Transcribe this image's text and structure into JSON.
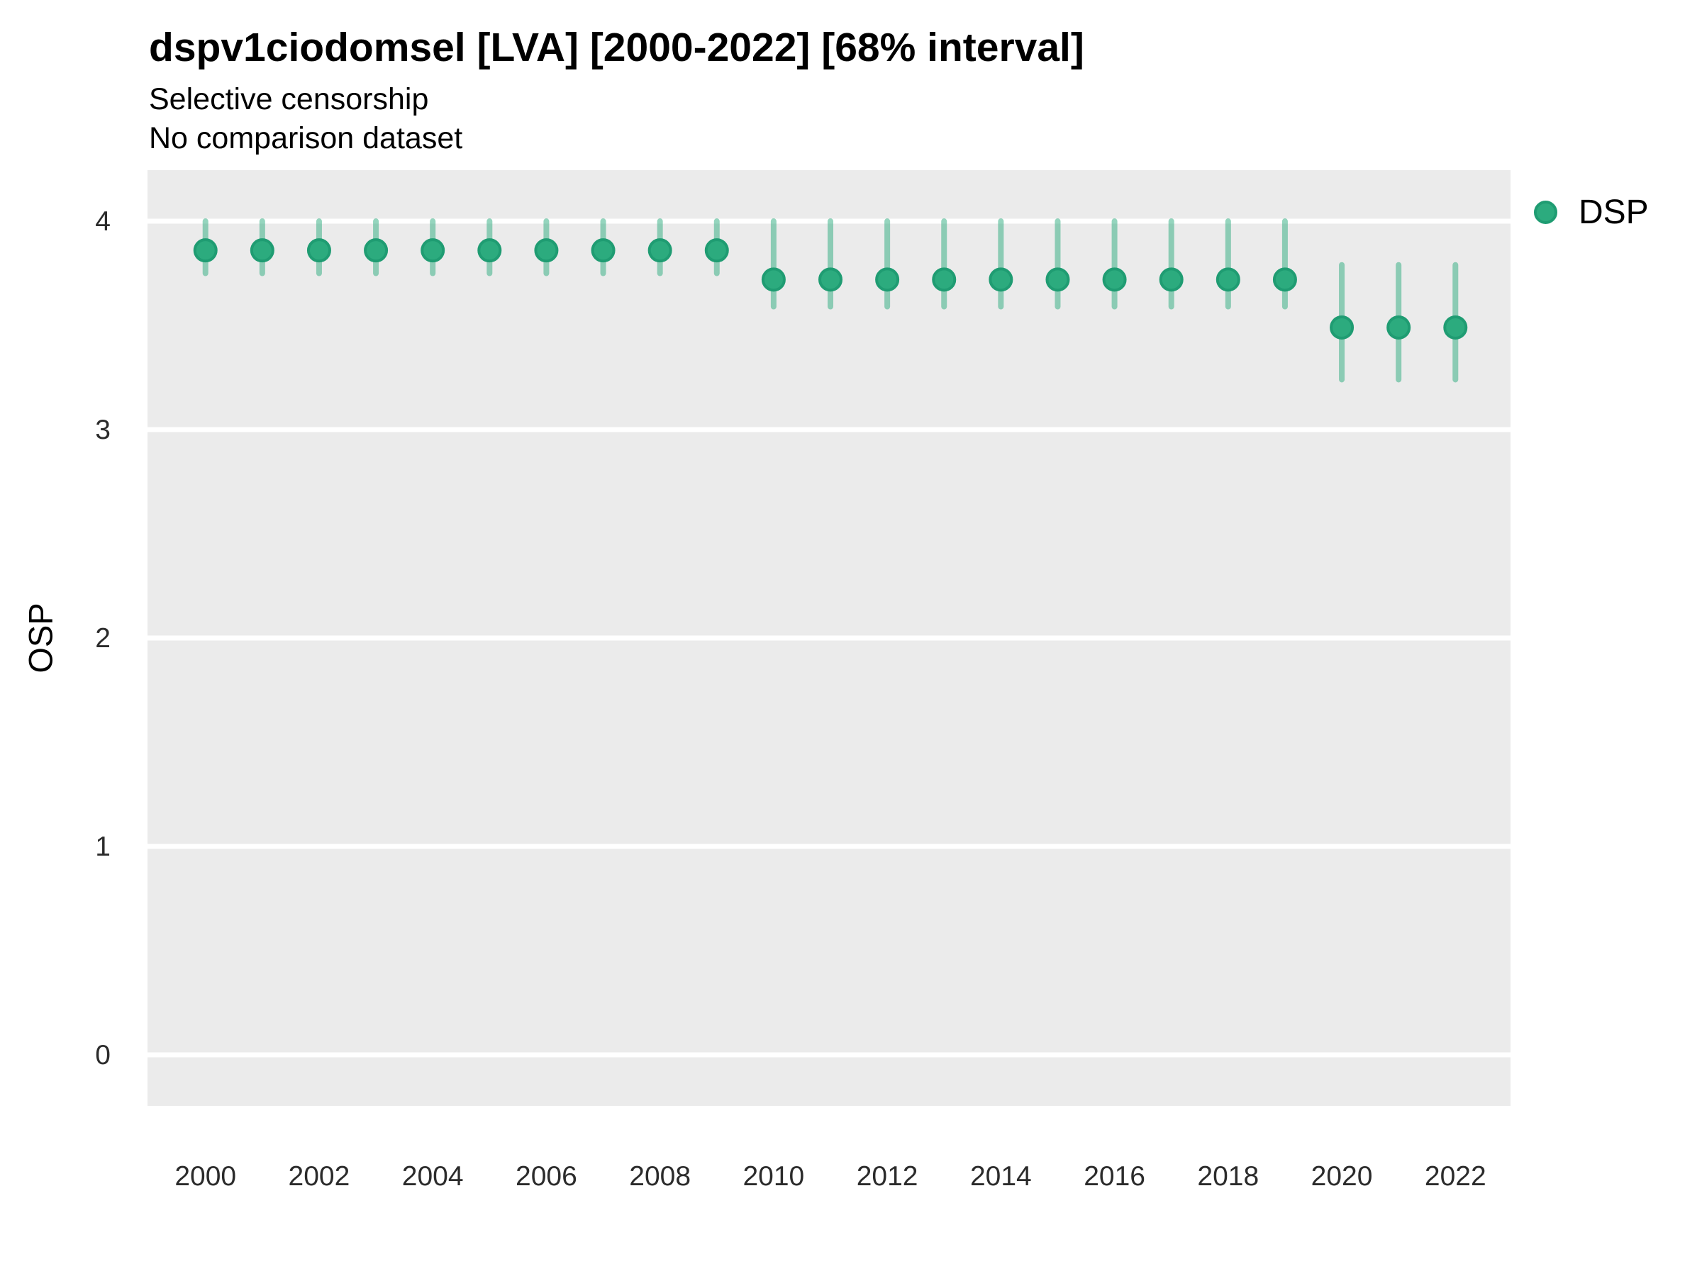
{
  "header": {
    "title": "dspv1ciodomsel [LVA] [2000-2022] [68% interval]",
    "subtitle": "Selective censorship",
    "caption": "No comparison dataset"
  },
  "axes": {
    "y_title": "OSP",
    "x_title": ""
  },
  "legend": {
    "items": [
      {
        "label": "DSP",
        "color": "#2cab7e",
        "stroke": "#1f9c72"
      }
    ]
  },
  "colors": {
    "panel_background": "#EBEBEB",
    "gridline": "#FFFFFF",
    "point_fill": "#2cab7e",
    "point_stroke": "#1f9c72",
    "interval_line": "#2cab7e",
    "tick_text": "#2b2b2b",
    "text": "#000000"
  },
  "chart_data": {
    "type": "scatter",
    "title": "dspv1ciodomsel [LVA] [2000-2022] [68% interval]",
    "subtitle": "Selective censorship",
    "caption": "No comparison dataset",
    "xlabel": "",
    "ylabel": "OSP",
    "interval_level": "68%",
    "xlim": [
      1998.98,
      2022.97
    ],
    "ylim": [
      -0.245,
      4.245
    ],
    "yticks": [
      0,
      1,
      2,
      3,
      4
    ],
    "xticks": [
      2000,
      2002,
      2004,
      2006,
      2008,
      2010,
      2012,
      2014,
      2016,
      2018,
      2020,
      2022
    ],
    "grid": "horizontal-major-only",
    "legend_position": "right",
    "series": [
      {
        "name": "DSP",
        "color": "#2cab7e",
        "stroke": "#1f9c72",
        "interval_color": "#2cab7e",
        "points": [
          {
            "year": 2000,
            "value": 3.86,
            "lo": 3.75,
            "hi": 4.0
          },
          {
            "year": 2001,
            "value": 3.86,
            "lo": 3.75,
            "hi": 4.0
          },
          {
            "year": 2002,
            "value": 3.86,
            "lo": 3.75,
            "hi": 4.0
          },
          {
            "year": 2003,
            "value": 3.86,
            "lo": 3.75,
            "hi": 4.0
          },
          {
            "year": 2004,
            "value": 3.86,
            "lo": 3.75,
            "hi": 4.0
          },
          {
            "year": 2005,
            "value": 3.86,
            "lo": 3.75,
            "hi": 4.0
          },
          {
            "year": 2006,
            "value": 3.86,
            "lo": 3.75,
            "hi": 4.0
          },
          {
            "year": 2007,
            "value": 3.86,
            "lo": 3.75,
            "hi": 4.0
          },
          {
            "year": 2008,
            "value": 3.86,
            "lo": 3.75,
            "hi": 4.0
          },
          {
            "year": 2009,
            "value": 3.86,
            "lo": 3.75,
            "hi": 4.0
          },
          {
            "year": 2010,
            "value": 3.72,
            "lo": 3.59,
            "hi": 4.0
          },
          {
            "year": 2011,
            "value": 3.72,
            "lo": 3.59,
            "hi": 4.0
          },
          {
            "year": 2012,
            "value": 3.72,
            "lo": 3.59,
            "hi": 4.0
          },
          {
            "year": 2013,
            "value": 3.72,
            "lo": 3.59,
            "hi": 4.0
          },
          {
            "year": 2014,
            "value": 3.72,
            "lo": 3.59,
            "hi": 4.0
          },
          {
            "year": 2015,
            "value": 3.72,
            "lo": 3.59,
            "hi": 4.0
          },
          {
            "year": 2016,
            "value": 3.72,
            "lo": 3.59,
            "hi": 4.0
          },
          {
            "year": 2017,
            "value": 3.72,
            "lo": 3.59,
            "hi": 4.0
          },
          {
            "year": 2018,
            "value": 3.72,
            "lo": 3.59,
            "hi": 4.0
          },
          {
            "year": 2019,
            "value": 3.72,
            "lo": 3.59,
            "hi": 4.0
          },
          {
            "year": 2020,
            "value": 3.49,
            "lo": 3.24,
            "hi": 3.79
          },
          {
            "year": 2021,
            "value": 3.49,
            "lo": 3.24,
            "hi": 3.79
          },
          {
            "year": 2022,
            "value": 3.49,
            "lo": 3.24,
            "hi": 3.79
          }
        ]
      }
    ]
  }
}
